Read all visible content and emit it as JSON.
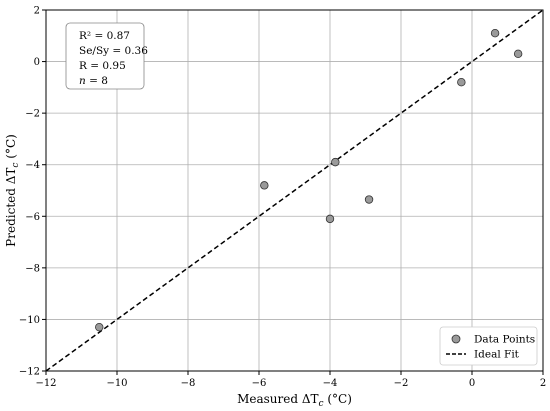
{
  "chart_data": {
    "type": "scatter",
    "title": "",
    "xlabel": "Measured ΔT",
    "xlabel_sub": "c",
    "xlabel_unit": " (°C)",
    "ylabel": "Predicted ΔT",
    "ylabel_sub": "c",
    "ylabel_unit": " (°C)",
    "xlim": [
      -12,
      2
    ],
    "ylim": [
      -12,
      2
    ],
    "xticks": [
      -12,
      -10,
      -8,
      -6,
      -4,
      -2,
      0,
      2
    ],
    "yticks": [
      -12,
      -10,
      -8,
      -6,
      -4,
      -2,
      0,
      2
    ],
    "xtick_labels": [
      "−12",
      "−10",
      "−8",
      "−6",
      "−4",
      "−2",
      "0",
      "2"
    ],
    "ytick_labels": [
      "−12",
      "−10",
      "−8",
      "−6",
      "−4",
      "−2",
      "0",
      "2"
    ],
    "grid": true,
    "legend_position": "bottom-right",
    "series": [
      {
        "name": "Data Points",
        "marker_color": "#9a9a9a",
        "points": [
          {
            "x": -10.5,
            "y": -10.3
          },
          {
            "x": -5.85,
            "y": -4.8
          },
          {
            "x": -3.85,
            "y": -3.9
          },
          {
            "x": -4.0,
            "y": -6.1
          },
          {
            "x": -2.9,
            "y": -5.35
          },
          {
            "x": -0.3,
            "y": -0.8
          },
          {
            "x": 0.65,
            "y": 1.1
          },
          {
            "x": 1.3,
            "y": 0.3
          }
        ]
      },
      {
        "name": "Ideal Fit",
        "line_style": "dashed",
        "line_color": "#000000",
        "points": [
          {
            "x": -12,
            "y": -12
          },
          {
            "x": 2,
            "y": 2
          }
        ]
      }
    ],
    "annotation": {
      "r2_label": "R² = 0.87",
      "se_sy_label": "Se/Sy = 0.36",
      "r_label": "R = 0.95",
      "n_prefix": "n",
      "n_suffix": " = 8"
    }
  }
}
